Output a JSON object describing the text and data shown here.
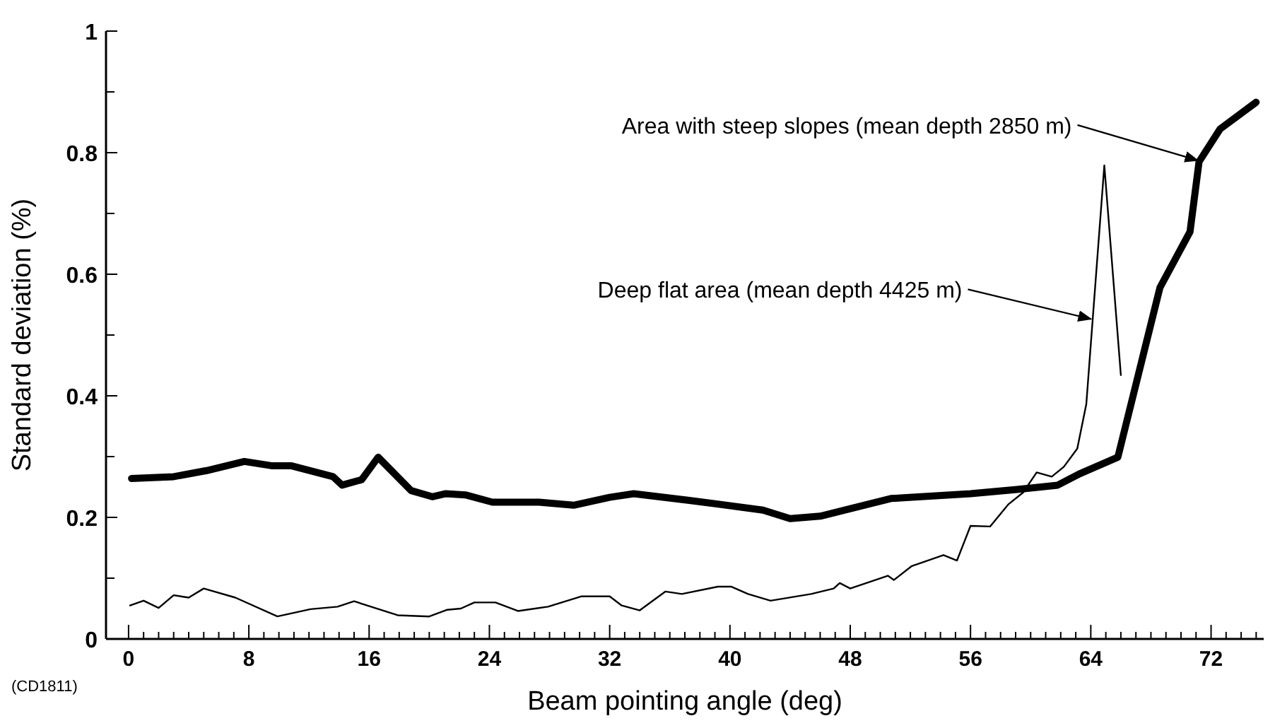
{
  "chart_data": {
    "type": "line",
    "xlabel": "Beam pointing angle (deg)",
    "ylabel": "Standard deviation (%)",
    "xlim": [
      -1.5,
      75.5
    ],
    "xticks": [
      0,
      {
        "value": 1,
        "label": null
      },
      {
        "value": 2,
        "label": null
      },
      {
        "value": 3,
        "label": null
      },
      {
        "value": 4,
        "label": null
      },
      {
        "value": 5,
        "label": null
      },
      {
        "value": 6,
        "label": null
      },
      {
        "value": 7,
        "label": null
      },
      8,
      {
        "value": 9,
        "label": null
      },
      {
        "value": 10,
        "label": null
      },
      {
        "value": 11,
        "label": null
      },
      {
        "value": 12,
        "label": null
      },
      {
        "value": 13,
        "label": null
      },
      {
        "value": 14,
        "label": null
      },
      {
        "value": 15,
        "label": null
      },
      16,
      {
        "value": 17,
        "label": null
      },
      {
        "value": 18,
        "label": null
      },
      {
        "value": 19,
        "label": null
      },
      {
        "value": 20,
        "label": null
      },
      {
        "value": 21,
        "label": null
      },
      {
        "value": 22,
        "label": null
      },
      {
        "value": 23,
        "label": null
      },
      24,
      {
        "value": 25,
        "label": null
      },
      {
        "value": 26,
        "label": null
      },
      {
        "value": 27,
        "label": null
      },
      {
        "value": 28,
        "label": null
      },
      {
        "value": 29,
        "label": null
      },
      {
        "value": 30,
        "label": null
      },
      {
        "value": 31,
        "label": null
      },
      32,
      {
        "value": 33,
        "label": null
      },
      {
        "value": 34,
        "label": null
      },
      {
        "value": 35,
        "label": null
      },
      {
        "value": 36,
        "label": null
      },
      {
        "value": 37,
        "label": null
      },
      {
        "value": 38,
        "label": null
      },
      {
        "value": 39,
        "label": null
      },
      40,
      {
        "value": 41,
        "label": null
      },
      {
        "value": 42,
        "label": null
      },
      {
        "value": 43,
        "label": null
      },
      {
        "value": 44,
        "label": null
      },
      {
        "value": 45,
        "label": null
      },
      {
        "value": 46,
        "label": null
      },
      {
        "value": 47,
        "label": null
      },
      48,
      {
        "value": 49,
        "label": null
      },
      {
        "value": 50,
        "label": null
      },
      {
        "value": 51,
        "label": null
      },
      {
        "value": 52,
        "label": null
      },
      {
        "value": 53,
        "label": null
      },
      {
        "value": 54,
        "label": null
      },
      {
        "value": 55,
        "label": null
      },
      56,
      {
        "value": 57,
        "label": null
      },
      {
        "value": 58,
        "label": null
      },
      {
        "value": 59,
        "label": null
      },
      {
        "value": 60,
        "label": null
      },
      {
        "value": 61,
        "label": null
      },
      {
        "value": 62,
        "label": null
      },
      {
        "value": 63,
        "label": null
      },
      64,
      {
        "value": 65,
        "label": null
      },
      {
        "value": 66,
        "label": null
      },
      {
        "value": 67,
        "label": null
      },
      {
        "value": 68,
        "label": null
      },
      {
        "value": 69,
        "label": null
      },
      {
        "value": 70,
        "label": null
      },
      {
        "value": 71,
        "label": null
      },
      72,
      {
        "value": 73,
        "label": null
      },
      {
        "value": 74,
        "label": null
      },
      {
        "value": 75,
        "label": null
      }
    ],
    "ylim": [
      0,
      1
    ],
    "yticks": [
      0,
      {
        "value": 0.1,
        "label": null
      },
      0.2,
      {
        "value": 0.3,
        "label": null
      },
      0.4,
      {
        "value": 0.5,
        "label": null
      },
      0.6,
      {
        "value": 0.7,
        "label": null
      },
      0.8,
      {
        "value": 0.9,
        "label": null
      },
      1
    ],
    "marker": "none",
    "line_style": "solid",
    "series": [
      {
        "color": "#000000",
        "x": [
          0.2,
          3.0,
          5.2,
          7.7,
          9.5,
          10.8,
          13.6,
          14.2,
          15.5,
          16.6,
          18.8,
          20.2,
          21.1,
          22.4,
          24.2,
          27.3,
          29.6,
          32.0,
          33.6,
          37.3,
          42.2,
          44.0,
          46.0,
          50.7,
          56.0,
          59.1,
          61.8,
          63.2,
          65.8,
          68.6,
          70.6,
          71.2,
          72.6,
          75.0
        ],
        "values": [
          0.264,
          0.267,
          0.277,
          0.292,
          0.285,
          0.285,
          0.267,
          0.253,
          0.262,
          0.299,
          0.244,
          0.234,
          0.239,
          0.237,
          0.225,
          0.225,
          0.22,
          0.233,
          0.239,
          0.228,
          0.212,
          0.198,
          0.202,
          0.231,
          0.239,
          0.246,
          0.253,
          0.271,
          0.299,
          0.578,
          0.67,
          0.785,
          0.839,
          0.883
        ]
      },
      {
        "color": "#000000",
        "x": [
          0.1,
          1.0,
          2.0,
          3.0,
          4.0,
          5.0,
          7.1,
          9.9,
          12.1,
          13.9,
          15.0,
          17.9,
          20.0,
          21.2,
          22.1,
          23.0,
          24.4,
          25.9,
          27.9,
          30.1,
          32.0,
          32.8,
          34.0,
          35.7,
          36.8,
          39.2,
          40.1,
          41.2,
          42.7,
          45.4,
          46.9,
          47.3,
          48.0,
          50.5,
          50.9,
          52.1,
          54.2,
          55.1,
          56.0,
          57.3,
          58.5,
          59.5,
          60.4,
          61.4,
          62.2,
          63.1,
          63.7,
          64.9,
          66.0
        ],
        "values": [
          0.055,
          0.063,
          0.051,
          0.072,
          0.068,
          0.083,
          0.068,
          0.037,
          0.049,
          0.053,
          0.062,
          0.039,
          0.037,
          0.048,
          0.05,
          0.06,
          0.06,
          0.046,
          0.053,
          0.07,
          0.07,
          0.055,
          0.047,
          0.078,
          0.074,
          0.086,
          0.086,
          0.074,
          0.063,
          0.074,
          0.083,
          0.092,
          0.083,
          0.104,
          0.097,
          0.12,
          0.138,
          0.129,
          0.186,
          0.185,
          0.221,
          0.241,
          0.274,
          0.267,
          0.283,
          0.313,
          0.386,
          0.779,
          0.434
        ]
      }
    ],
    "annotations": [
      {
        "text": "Area with steep slopes  (mean depth 2850 m)",
        "x": 71.2,
        "y": 0.785
      },
      {
        "text": "Deep flat area  (mean depth 4425 m)",
        "x": 64.1,
        "y": 0.524
      },
      "(CD1811)"
    ]
  }
}
